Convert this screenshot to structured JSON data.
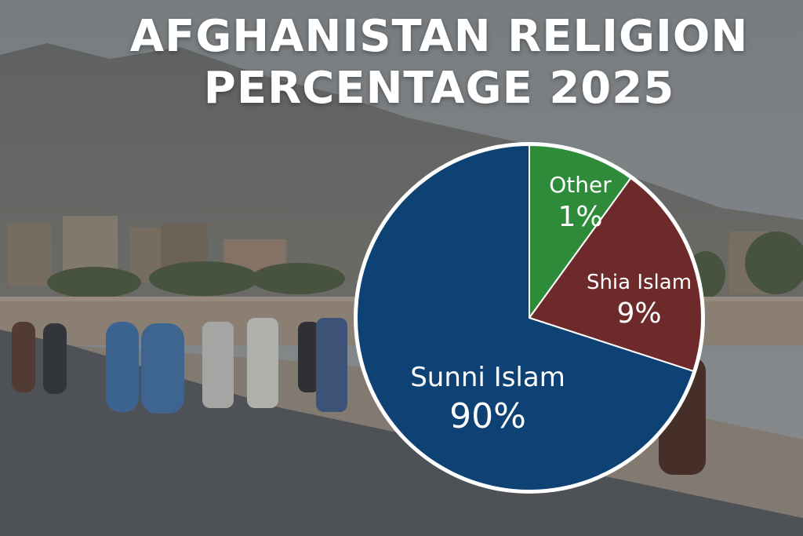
{
  "title_lines": [
    "AFGHANISTAN RELIGION",
    "PERCENTAGE 2025"
  ],
  "chart_data": {
    "type": "pie",
    "title": "AFGHANISTAN RELIGION PERCENTAGE 2025",
    "slices": [
      {
        "label": "Other",
        "value": 1,
        "display": "1%",
        "color": "#2e8b3a"
      },
      {
        "label": "Shia Islam",
        "value": 9,
        "display": "9%",
        "color": "#6e2a2a"
      },
      {
        "label": "Sunni Islam",
        "value": 90,
        "display": "90%",
        "color": "#0e4174"
      }
    ],
    "legend": "none"
  }
}
